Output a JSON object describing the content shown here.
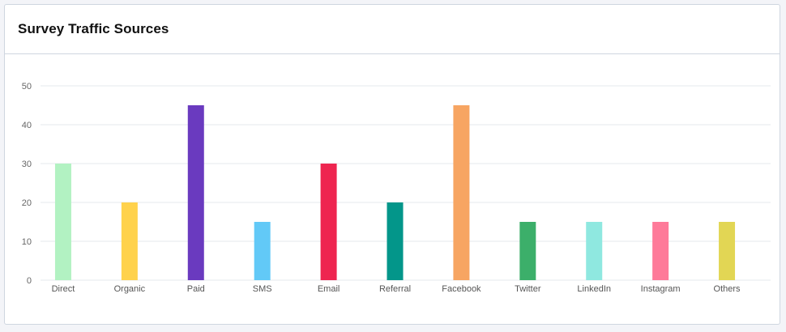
{
  "card": {
    "title": "Survey Traffic Sources"
  },
  "chart_data": {
    "type": "bar",
    "categories": [
      "Direct",
      "Organic",
      "Paid",
      "SMS",
      "Email",
      "Referral",
      "Facebook",
      "Twitter",
      "LinkedIn",
      "Instagram",
      "Others"
    ],
    "values": [
      30,
      20,
      45,
      15,
      30,
      20,
      45,
      15,
      15,
      15,
      15
    ],
    "colors": [
      "#b2f2c2",
      "#ffd24c",
      "#6a3abf",
      "#62c9f7",
      "#ee2550",
      "#03968a",
      "#f7a562",
      "#3caf6a",
      "#8fe8e0",
      "#fe7a99",
      "#e2d654"
    ],
    "ylim": [
      0,
      50
    ],
    "yticks": [
      0,
      10,
      20,
      30,
      40,
      50
    ],
    "grid": true,
    "xlabel": "",
    "ylabel": ""
  }
}
